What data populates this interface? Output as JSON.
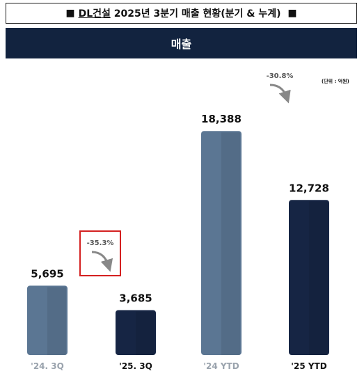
{
  "title": {
    "prefix_marker": "■",
    "company": "DL건설",
    "text": " 2025년 3분기 매출 현황(분기 & 누계) ",
    "suffix_marker": "■"
  },
  "header": {
    "label": "매출"
  },
  "unit_note": "(단위 : 억원)",
  "colors": {
    "header_bg": "#12233f",
    "bar_2024": "#5b7693",
    "bar_2025": "#162544",
    "label_2024": "#9aa3ad",
    "label_2025": "#111111",
    "highlight_box": "#d42020"
  },
  "chart_data": {
    "type": "bar",
    "categories": [
      "'24. 3Q",
      "'25. 3Q",
      "'24 YTD",
      "'25 YTD"
    ],
    "values": [
      5695,
      3685,
      18388,
      12728
    ],
    "value_labels": [
      "5,695",
      "3,685",
      "18,388",
      "12,728"
    ],
    "groups": [
      "2024",
      "2025",
      "2024",
      "2025"
    ],
    "title": "",
    "xlabel": "",
    "ylabel": "",
    "unit": "억원",
    "ylim": [
      0,
      20000
    ],
    "grid": false,
    "annotations": [
      {
        "text": "-35.3%",
        "between": [
          "'24. 3Q",
          "'25. 3Q"
        ],
        "highlighted": true
      },
      {
        "text": "-30.8%",
        "between": [
          "'24 YTD",
          "'25 YTD"
        ],
        "highlighted": false
      }
    ]
  }
}
